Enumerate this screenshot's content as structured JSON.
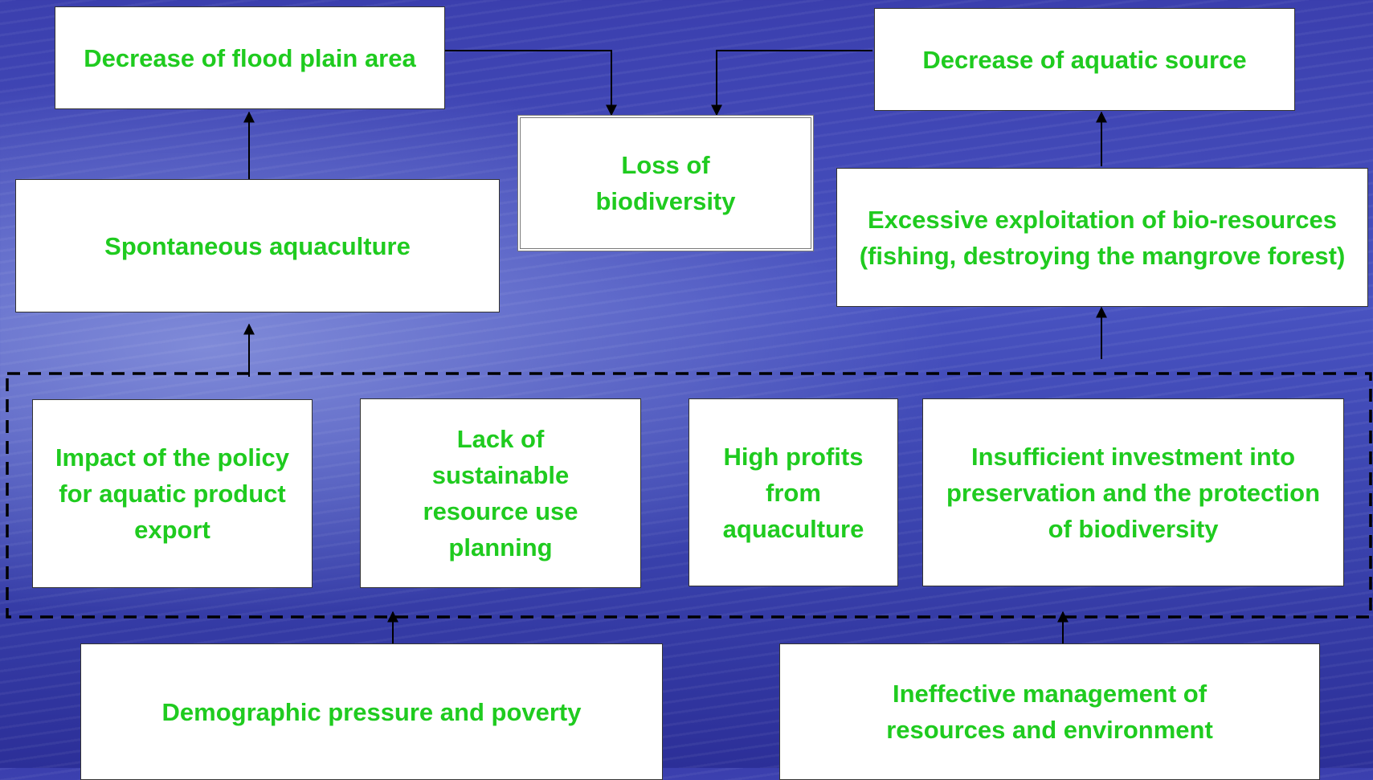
{
  "nodes": [
    {
      "label": "Decrease of flood plain area"
    },
    {
      "label": "Decrease of aquatic source"
    },
    {
      "label": "Loss of biodiversity"
    },
    {
      "label": "Spontaneous aquaculture"
    },
    {
      "label": "Excessive exploitation of bio-resources (fishing, destroying the mangrove forest)"
    },
    {
      "label": "Impact of the policy for aquatic product export"
    },
    {
      "label": "Lack of sustainable resource use planning"
    },
    {
      "label": "High profits from aquaculture"
    },
    {
      "label": "Insufficient investment into preservation and the protection of biodiversity"
    },
    {
      "label": "Demographic pressure and poverty"
    },
    {
      "label": "Ineffective management of resources and environment"
    }
  ]
}
